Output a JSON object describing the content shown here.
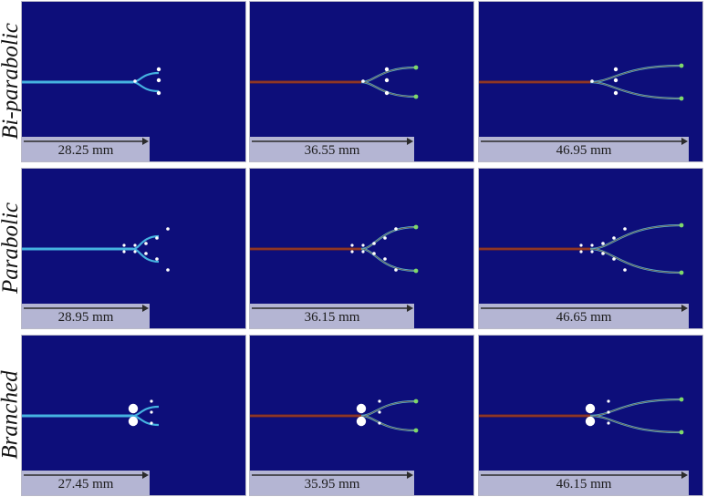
{
  "rows": [
    {
      "label": "Bi-parabolic",
      "panels": [
        {
          "length": "28.25 mm",
          "stage": 0,
          "split": "bi"
        },
        {
          "length": "36.55 mm",
          "stage": 1,
          "split": "bi"
        },
        {
          "length": "46.95 mm",
          "stage": 2,
          "split": "bi"
        }
      ]
    },
    {
      "label": "Parabolic",
      "panels": [
        {
          "length": "28.95 mm",
          "stage": 0,
          "split": "par"
        },
        {
          "length": "36.15 mm",
          "stage": 1,
          "split": "par"
        },
        {
          "length": "46.65 mm",
          "stage": 2,
          "split": "par"
        }
      ]
    },
    {
      "label": "Branched",
      "panels": [
        {
          "length": "27.45 mm",
          "stage": 0,
          "split": "br"
        },
        {
          "length": "35.95 mm",
          "stage": 1,
          "split": "br"
        },
        {
          "length": "46.15 mm",
          "stage": 2,
          "split": "br"
        }
      ]
    }
  ],
  "colors": {
    "background": "#0d0e7a",
    "crack_early": "#45b2e0",
    "crack_hot": "#7a2a1f",
    "crack_tip": "#7fd86a",
    "holes": "#ffffff",
    "scale_bar": "#b4b5d3",
    "arrow": "#2b2b2b"
  }
}
